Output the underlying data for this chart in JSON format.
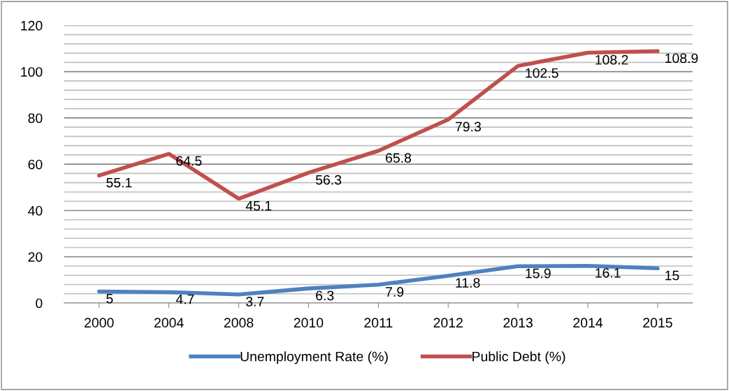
{
  "chart_data": {
    "type": "line",
    "categories": [
      "2000",
      "2004",
      "2008",
      "2010",
      "2011",
      "2012",
      "2013",
      "2014",
      "2015"
    ],
    "series": [
      {
        "name": "Unemployment Rate (%)",
        "color": "#4f81bd",
        "values": [
          5,
          4.7,
          3.7,
          6.3,
          7.9,
          11.8,
          15.9,
          16.1,
          15
        ]
      },
      {
        "name": "Public Debt (%)",
        "color": "#c0504d",
        "values": [
          55.1,
          64.5,
          45.1,
          56.3,
          65.8,
          79.3,
          102.5,
          108.2,
          108.9
        ]
      }
    ],
    "ylim": [
      0,
      120
    ],
    "yticks": [
      0,
      20,
      40,
      60,
      80,
      100,
      120
    ],
    "grid": "y",
    "legend": "bottom",
    "data_labels": true,
    "marker": "none",
    "line_style": "solid"
  }
}
